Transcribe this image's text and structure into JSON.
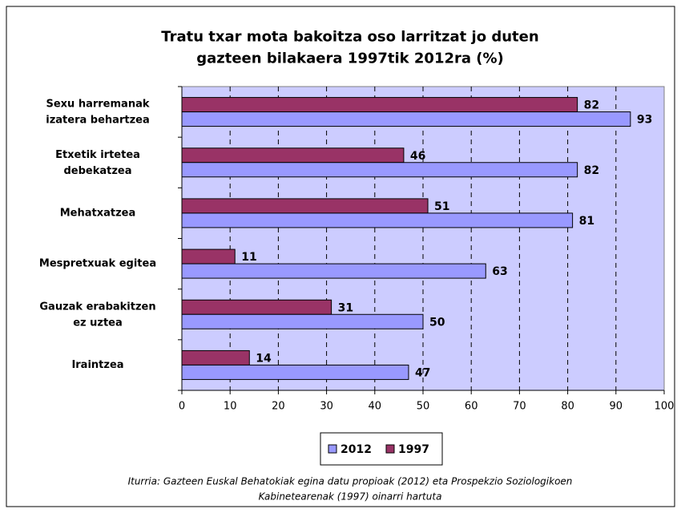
{
  "chart_data": {
    "type": "hbar",
    "title": "Tratu txar mota bakoitza oso larritzat jo duten\ngazteen bilakaera 1997tik 2012ra (%)",
    "categories": [
      "Sexu harremanak\nizatera behartzea",
      "Etxetik irtetea\ndebekatzea",
      "Mehatxatzea",
      "Mespretxuak egitea",
      "Gauzak erabakitzen\nez uztea",
      "Iraintzea"
    ],
    "series": [
      {
        "name": "2012",
        "color": "#9999ff",
        "values": [
          93,
          82,
          81,
          63,
          50,
          47
        ]
      },
      {
        "name": "1997",
        "color": "#993366",
        "values": [
          82,
          46,
          51,
          11,
          31,
          14
        ]
      }
    ],
    "xlim": [
      0,
      100
    ],
    "xticks": [
      0,
      10,
      20,
      30,
      40,
      50,
      60,
      70,
      80,
      90,
      100
    ],
    "grid": true,
    "legend": "bottom",
    "note": "Iturria: Gazteen Euskal Behatokiak egina datu propioak (2012) eta Prospekzio Soziologikoen\nKabinetearenak (1997) oinarri hartuta"
  }
}
